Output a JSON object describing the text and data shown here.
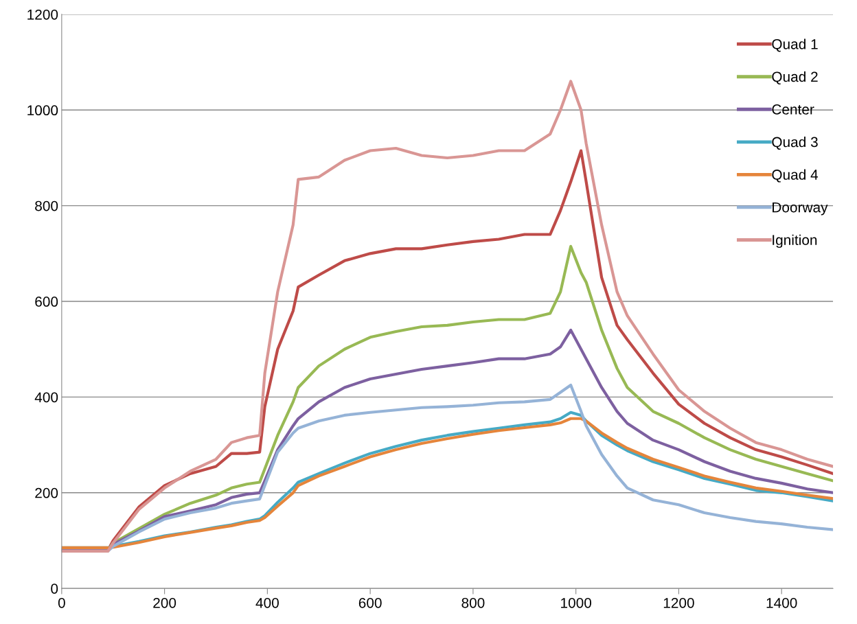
{
  "chart_data": {
    "type": "line",
    "x": [
      0,
      90,
      100,
      150,
      200,
      250,
      300,
      330,
      360,
      385,
      395,
      420,
      450,
      460,
      500,
      550,
      600,
      650,
      700,
      750,
      800,
      850,
      900,
      950,
      970,
      990,
      1010,
      1020,
      1050,
      1080,
      1100,
      1150,
      1200,
      1250,
      1300,
      1350,
      1400,
      1450,
      1500
    ],
    "series": [
      {
        "name": "Quad 1",
        "color": "#be4b48",
        "values": [
          80,
          80,
          100,
          170,
          215,
          240,
          255,
          282,
          282,
          285,
          380,
          500,
          580,
          630,
          655,
          685,
          700,
          710,
          710,
          718,
          725,
          730,
          740,
          740,
          790,
          850,
          915,
          850,
          650,
          550,
          520,
          450,
          385,
          345,
          315,
          290,
          275,
          258,
          240
        ]
      },
      {
        "name": "Quad 2",
        "color": "#98b954",
        "values": [
          80,
          80,
          95,
          125,
          155,
          178,
          195,
          210,
          218,
          222,
          250,
          320,
          390,
          420,
          465,
          500,
          525,
          537,
          547,
          550,
          557,
          562,
          562,
          575,
          620,
          715,
          660,
          640,
          540,
          460,
          420,
          370,
          345,
          315,
          290,
          270,
          255,
          240,
          225
        ]
      },
      {
        "name": "Center",
        "color": "#7d60a0",
        "values": [
          80,
          80,
          92,
          120,
          150,
          162,
          175,
          190,
          197,
          200,
          225,
          290,
          340,
          355,
          390,
          420,
          438,
          448,
          458,
          465,
          472,
          480,
          480,
          490,
          505,
          540,
          500,
          480,
          420,
          370,
          345,
          310,
          290,
          265,
          245,
          230,
          220,
          208,
          200
        ]
      },
      {
        "name": "Quad 3",
        "color": "#46aac5",
        "values": [
          85,
          85,
          88,
          98,
          110,
          118,
          128,
          133,
          140,
          145,
          152,
          180,
          210,
          222,
          240,
          262,
          282,
          297,
          310,
          320,
          328,
          335,
          342,
          348,
          355,
          368,
          362,
          350,
          320,
          300,
          288,
          265,
          248,
          230,
          218,
          205,
          200,
          192,
          183
        ]
      },
      {
        "name": "Quad 4",
        "color": "#e5853b",
        "values": [
          85,
          85,
          86,
          96,
          108,
          117,
          126,
          131,
          138,
          142,
          148,
          172,
          200,
          215,
          235,
          255,
          275,
          290,
          303,
          313,
          322,
          330,
          336,
          342,
          346,
          355,
          355,
          350,
          325,
          305,
          293,
          270,
          253,
          235,
          222,
          210,
          203,
          195,
          188
        ]
      },
      {
        "name": "Doorway",
        "color": "#95b3d7",
        "values": [
          78,
          78,
          88,
          118,
          145,
          158,
          168,
          178,
          183,
          187,
          215,
          285,
          325,
          335,
          350,
          362,
          368,
          373,
          378,
          380,
          383,
          388,
          390,
          395,
          410,
          425,
          370,
          340,
          280,
          235,
          210,
          185,
          175,
          158,
          148,
          140,
          135,
          128,
          123
        ]
      },
      {
        "name": "Ignition",
        "color": "#d99694",
        "values": [
          78,
          78,
          95,
          165,
          210,
          245,
          270,
          305,
          315,
          320,
          450,
          620,
          760,
          855,
          860,
          895,
          915,
          920,
          905,
          900,
          905,
          915,
          915,
          950,
          1000,
          1060,
          1000,
          930,
          760,
          620,
          570,
          490,
          415,
          370,
          335,
          305,
          290,
          270,
          255
        ]
      }
    ],
    "xlim": [
      0,
      1500
    ],
    "xticks": [
      0,
      200,
      400,
      600,
      800,
      1000,
      1200,
      1400
    ],
    "ylim": [
      0,
      1200
    ],
    "yticks": [
      0,
      200,
      400,
      600,
      800,
      1000,
      1200
    ],
    "grid": "y",
    "legend": "top right",
    "marker": "none",
    "line_style": "solid"
  }
}
